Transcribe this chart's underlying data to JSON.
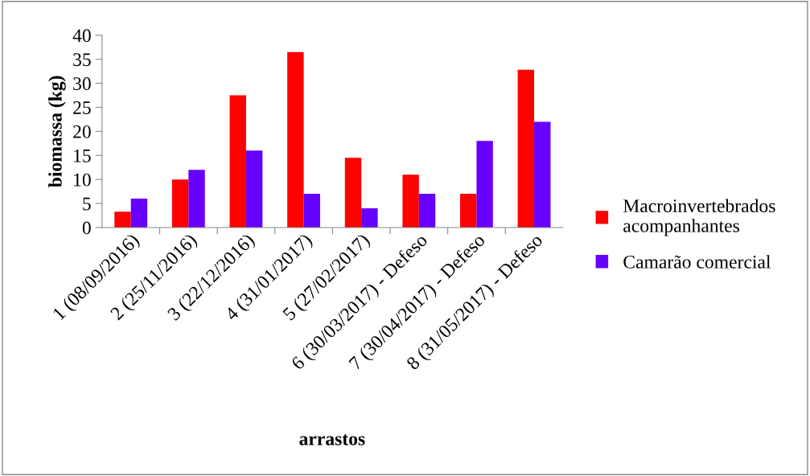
{
  "chart_data": {
    "type": "bar",
    "xlabel": "arrastos",
    "ylabel": "biomassa (kg)",
    "categories": [
      "1 (08/09/2016)",
      "2 (25/11/2016)",
      "3 (22/12/2016)",
      "4 (31/01/2017)",
      "5 (27/02/2017)",
      "6 (30/03/2017) - Defeso",
      "7 (30/04/2017) - Defeso",
      "8 (31/05/2017) - Defeso"
    ],
    "series": [
      {
        "name": "Macroinvertebrados\nacompanhantes",
        "color": "#ff0000",
        "values": [
          3.3,
          10,
          27.5,
          36.5,
          14.5,
          11,
          7,
          32.8
        ]
      },
      {
        "name": "Camarão comercial",
        "color": "#6600ff",
        "values": [
          6,
          12,
          16,
          7,
          4,
          7,
          18,
          22
        ]
      }
    ],
    "ylim": [
      0,
      40
    ],
    "yticks": [
      0,
      5,
      10,
      15,
      20,
      25,
      30,
      35,
      40
    ],
    "grid": false,
    "legend": "right"
  }
}
